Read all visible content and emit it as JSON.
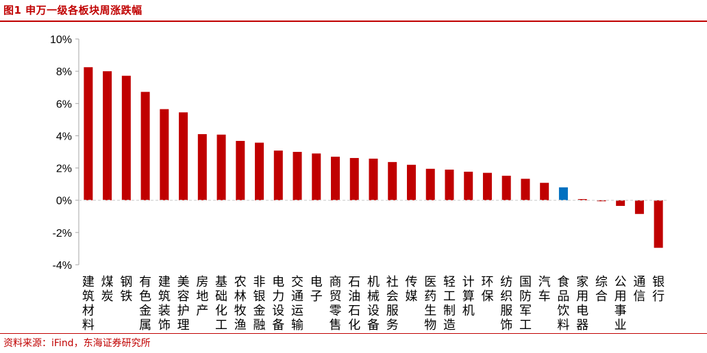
{
  "header": {
    "title": "图1  申万一级各板块周涨跌幅"
  },
  "footer": {
    "source": "资料来源：iFind，东海证券研究所"
  },
  "colors": {
    "accent": "#c00000",
    "bar_default": "#c00000",
    "bar_highlight": "#0070c0"
  },
  "chart_data": {
    "type": "bar",
    "title": "",
    "xlabel": "",
    "ylabel": "",
    "ylim": [
      -4,
      10
    ],
    "yticks": [
      -4,
      -2,
      0,
      2,
      4,
      6,
      8,
      10
    ],
    "ytick_labels": [
      "-4%",
      "-2%",
      "0%",
      "2%",
      "4%",
      "6%",
      "8%",
      "10%"
    ],
    "categories": [
      "建筑材料",
      "煤炭",
      "钢铁",
      "有色金属",
      "建筑装饰",
      "美容护理",
      "房地产",
      "基础化工",
      "农林牧渔",
      "非银金融",
      "电力设备",
      "交通运输",
      "电子",
      "商贸零售",
      "石油石化",
      "机械设备",
      "社会服务",
      "传媒",
      "医药生物",
      "轻工制造",
      "计算机",
      "环保",
      "纺织服饰",
      "国防军工",
      "汽车",
      "食品饮料",
      "家用电器",
      "综合",
      "公用事业",
      "通信",
      "银行"
    ],
    "values": [
      8.25,
      8.0,
      7.72,
      6.72,
      5.65,
      5.45,
      4.1,
      4.07,
      3.68,
      3.57,
      3.08,
      3.0,
      2.9,
      2.7,
      2.62,
      2.58,
      2.37,
      2.2,
      1.95,
      1.9,
      1.77,
      1.7,
      1.52,
      1.33,
      1.08,
      0.8,
      0.07,
      -0.06,
      -0.35,
      -0.85,
      -2.95
    ],
    "highlight_category": "食品饮料",
    "grid": false,
    "legend": "none"
  }
}
